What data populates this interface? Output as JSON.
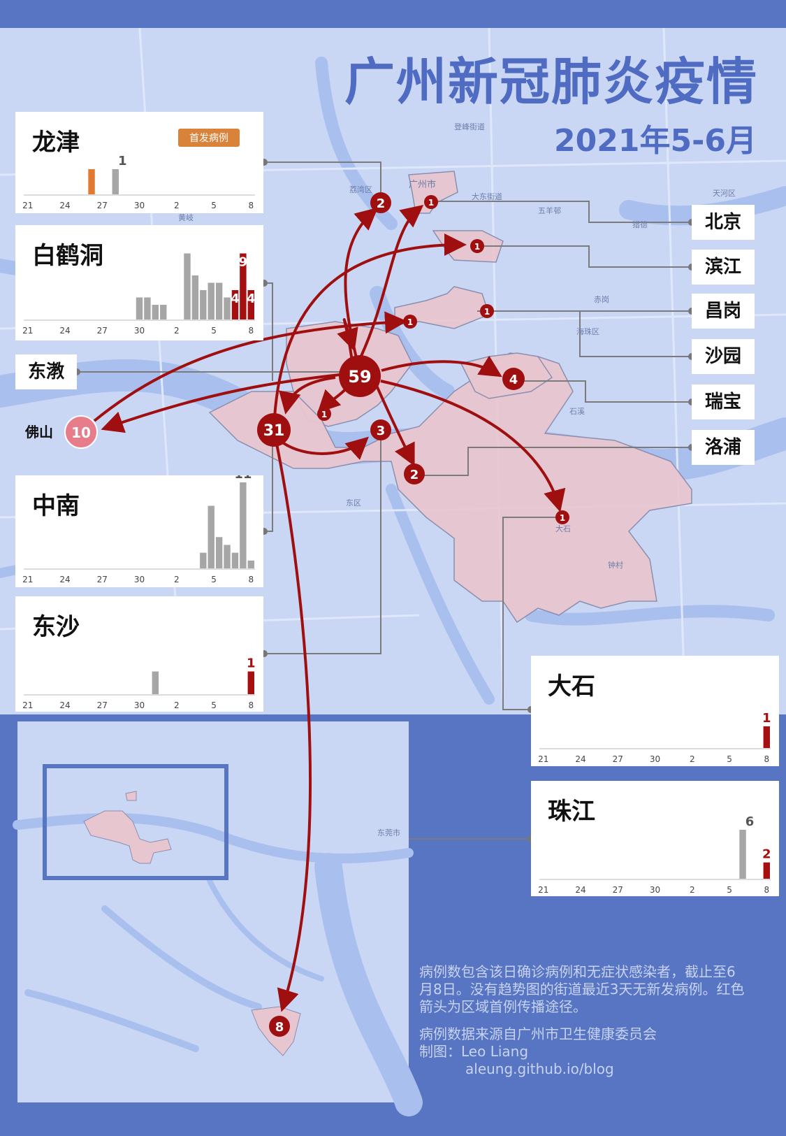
{
  "title": "广州新冠肺炎疫情",
  "subtitle": "2021年5-6月",
  "tick_labels": [
    "21",
    "24",
    "27",
    "30",
    "2",
    "5",
    "8"
  ],
  "colors": {
    "gray": "#a6a6a6",
    "red": "#a50f0f",
    "orange": "#e07a30",
    "district": "#e8c6cf",
    "arrow": "#a00f0f"
  },
  "cards": {
    "longjin": {
      "name": "龙津",
      "tag": "首发病例"
    },
    "baihedong": {
      "name": "白鹤洞"
    },
    "zhongnan": {
      "name": "中南"
    },
    "dongsha": {
      "name": "东沙"
    },
    "dashi": {
      "name": "大石"
    },
    "zhujiang": {
      "name": "珠江"
    }
  },
  "chart_data": [
    {
      "type": "bar",
      "title": "龙津",
      "categories_ticks": [
        "21",
        "24",
        "27",
        "30",
        "2",
        "5",
        "8"
      ],
      "values": [
        1,
        0,
        0,
        1,
        0,
        0,
        0,
        0,
        0,
        0,
        0,
        0,
        0,
        0,
        0,
        0,
        0,
        0,
        0,
        0,
        0
      ],
      "first_case_index": 0,
      "labels": {
        "3": "1"
      }
    },
    {
      "type": "bar",
      "title": "白鹤洞",
      "categories_ticks": [
        "21",
        "24",
        "27",
        "30",
        "2",
        "5",
        "8"
      ],
      "values": [
        0,
        0,
        0,
        0,
        0,
        0,
        0,
        3,
        3,
        2,
        2,
        0,
        0,
        9,
        6,
        4,
        5,
        5,
        3,
        4,
        9,
        4
      ],
      "red_from_index": 19,
      "labels": {
        "19": "4",
        "20": "9",
        "21": "4"
      }
    },
    {
      "type": "bar",
      "title": "中南",
      "categories_ticks": [
        "21",
        "24",
        "27",
        "30",
        "2",
        "5",
        "8"
      ],
      "values": [
        0,
        0,
        0,
        0,
        0,
        0,
        0,
        0,
        0,
        0,
        2,
        8,
        4,
        3,
        2,
        11,
        1
      ],
      "labels": {
        "15": "11"
      }
    },
    {
      "type": "bar",
      "title": "东沙",
      "categories_ticks": [
        "21",
        "24",
        "27",
        "30",
        "2",
        "5",
        "8"
      ],
      "values": [
        0,
        0,
        0,
        0,
        0,
        0,
        0,
        0,
        0,
        0,
        0,
        0,
        0,
        0,
        1,
        0,
        0,
        0,
        0,
        0,
        0,
        0,
        0,
        0,
        0,
        0,
        1
      ],
      "red_from_index": 26,
      "labels": {
        "26": "1"
      }
    },
    {
      "type": "bar",
      "title": "大石",
      "categories_ticks": [
        "21",
        "24",
        "27",
        "30",
        "2",
        "5",
        "8"
      ],
      "values": [
        0,
        0,
        0,
        0,
        0,
        0,
        0,
        0,
        0,
        0,
        0,
        0,
        0,
        0,
        0,
        0,
        0,
        0,
        0,
        0,
        0,
        0,
        0,
        0,
        0,
        0,
        1
      ],
      "red_from_index": 26,
      "labels": {
        "26": "1"
      }
    },
    {
      "type": "bar",
      "title": "珠江",
      "categories_ticks": [
        "21",
        "24",
        "27",
        "30",
        "2",
        "5",
        "8"
      ],
      "values": [
        0,
        0,
        0,
        0,
        0,
        0,
        0,
        0,
        0,
        0,
        0,
        0,
        0,
        0,
        0,
        0,
        0,
        0,
        0,
        0,
        0,
        0,
        0,
        0,
        6,
        0,
        0,
        2
      ],
      "red_from_index": 27,
      "labels": {
        "24": "6",
        "27": "2"
      }
    }
  ],
  "right_labels": [
    "北京",
    "滨江",
    "昌岗",
    "沙园",
    "瑞宝",
    "洛浦"
  ],
  "left_label": "东漖",
  "foshan_label": "佛山",
  "map_places": [
    "荔湾区",
    "广州市",
    "大东街道",
    "五羊邨",
    "登峰街道",
    "海珠区",
    "赤岗",
    "石溪",
    "东区",
    "大石",
    "钟村",
    "东莞市",
    "天河区",
    "猎德",
    "黄岐"
  ],
  "nodes": [
    {
      "count": "59"
    },
    {
      "count": "31"
    },
    {
      "count": "10"
    },
    {
      "count": "8"
    },
    {
      "count": "4"
    },
    {
      "count": "3"
    },
    {
      "count": "2"
    },
    {
      "count": "2"
    },
    {
      "count": "2"
    },
    {
      "count": "1"
    },
    {
      "count": "1"
    },
    {
      "count": "1"
    },
    {
      "count": "1"
    },
    {
      "count": "1"
    },
    {
      "count": "1"
    }
  ],
  "notes": {
    "p1": "病例数包含该日确诊病例和无症状感染者，截止至6月8日。没有趋势图的街道最近3天无新发病例。红色箭头为区域首例传播途径。",
    "p2": "病例数据来源自广州市卫生健康委员会",
    "p3": "制图：Leo Liang",
    "p4": "aleung.github.io/blog"
  }
}
